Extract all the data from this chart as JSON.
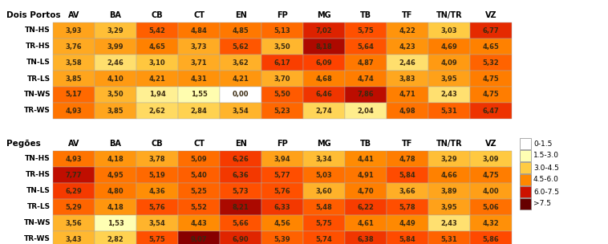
{
  "title1": "Dois Portos",
  "title2": "Pegões",
  "columns": [
    "AV",
    "BA",
    "CB",
    "CT",
    "EN",
    "FP",
    "MG",
    "TB",
    "TF",
    "TN/TR",
    "VZ"
  ],
  "rows": [
    "TN-HS",
    "TR-HS",
    "TN-LS",
    "TR-LS",
    "TN-WS",
    "TR-WS"
  ],
  "data1": [
    [
      3.93,
      3.29,
      5.42,
      4.84,
      4.85,
      5.13,
      7.02,
      5.75,
      4.22,
      3.03,
      6.77
    ],
    [
      3.76,
      3.99,
      4.65,
      3.73,
      5.62,
      3.5,
      8.18,
      5.64,
      4.23,
      4.69,
      4.65
    ],
    [
      3.58,
      2.46,
      3.1,
      3.71,
      3.62,
      6.17,
      6.09,
      4.87,
      2.46,
      4.09,
      5.32
    ],
    [
      3.85,
      4.1,
      4.21,
      4.31,
      4.21,
      3.7,
      4.68,
      4.74,
      3.83,
      3.95,
      4.75
    ],
    [
      5.17,
      3.5,
      1.94,
      1.55,
      0.0,
      5.5,
      6.46,
      7.86,
      4.71,
      2.43,
      4.75
    ],
    [
      4.93,
      3.85,
      2.62,
      2.84,
      3.54,
      5.23,
      2.74,
      2.04,
      4.98,
      5.31,
      6.47
    ]
  ],
  "data2": [
    [
      4.93,
      4.18,
      3.78,
      5.09,
      6.26,
      3.94,
      3.34,
      4.41,
      4.78,
      3.29,
      3.09
    ],
    [
      7.77,
      4.95,
      5.19,
      5.4,
      6.36,
      5.77,
      5.03,
      4.91,
      5.84,
      4.66,
      4.75
    ],
    [
      6.29,
      4.8,
      4.36,
      5.25,
      5.73,
      5.76,
      3.6,
      4.7,
      3.66,
      3.89,
      4.0
    ],
    [
      5.29,
      4.18,
      5.76,
      5.52,
      8.21,
      6.33,
      5.48,
      6.22,
      5.78,
      3.95,
      5.06
    ],
    [
      3.56,
      1.53,
      3.54,
      4.43,
      5.66,
      4.56,
      5.75,
      4.61,
      4.49,
      2.43,
      4.32
    ],
    [
      3.43,
      2.82,
      5.75,
      9.07,
      6.9,
      5.39,
      5.74,
      6.38,
      5.84,
      5.31,
      5.86
    ]
  ],
  "legend_labels": [
    "0-1.5",
    "1.5-3.0",
    "3.0-4.5",
    "4.5-6.0",
    "6.0-7.5",
    ">7.5"
  ],
  "legend_colors": [
    "#FFFFFF",
    "#FFFFB3",
    "#FFCC44",
    "#FF8800",
    "#CC1100",
    "#660000"
  ],
  "color_stops": [
    [
      0.0,
      "#FFFFFF"
    ],
    [
      0.125,
      "#FFFFB3"
    ],
    [
      0.25,
      "#FFCC44"
    ],
    [
      0.375,
      "#FF8800"
    ],
    [
      0.5,
      "#FF4400"
    ],
    [
      0.625,
      "#CC1100"
    ],
    [
      0.75,
      "#880000"
    ],
    [
      1.0,
      "#550000"
    ]
  ],
  "vmin": 0.0,
  "vmax": 12.0,
  "background_color": "#FFFFFF",
  "cell_text_color": "#3A2A10",
  "title_fontsize": 7.5,
  "cell_fontsize": 6.0,
  "row_label_fontsize": 6.5,
  "col_label_fontsize": 7.0,
  "legend_fontsize": 6.5
}
